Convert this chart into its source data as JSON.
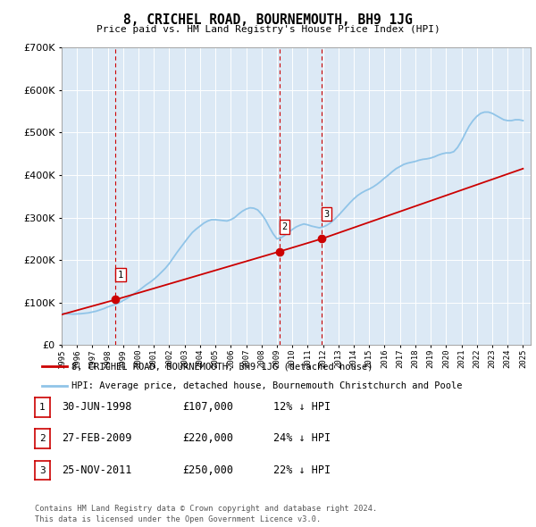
{
  "title": "8, CRICHEL ROAD, BOURNEMOUTH, BH9 1JG",
  "subtitle": "Price paid vs. HM Land Registry's House Price Index (HPI)",
  "background_color": "#dce9f5",
  "plot_bg": "#dce9f5",
  "ylim": [
    0,
    700000
  ],
  "yticks": [
    0,
    100000,
    200000,
    300000,
    400000,
    500000,
    600000,
    700000
  ],
  "xlim_start": 1995.0,
  "xlim_end": 2025.5,
  "sales": [
    {
      "num": 1,
      "date": "30-JUN-1998",
      "year": 1998.5,
      "price": 107000,
      "label": "12% ↓ HPI"
    },
    {
      "num": 2,
      "date": "27-FEB-2009",
      "year": 2009.15,
      "price": 220000,
      "label": "24% ↓ HPI"
    },
    {
      "num": 3,
      "date": "25-NOV-2011",
      "year": 2011.9,
      "price": 250000,
      "label": "22% ↓ HPI"
    }
  ],
  "hpi_line_color": "#90c4e8",
  "price_line_color": "#cc0000",
  "sale_marker_color": "#cc0000",
  "vline_color": "#cc0000",
  "legend_label_price": "8, CRICHEL ROAD, BOURNEMOUTH, BH9 1JG (detached house)",
  "legend_label_hpi": "HPI: Average price, detached house, Bournemouth Christchurch and Poole",
  "footer1": "Contains HM Land Registry data © Crown copyright and database right 2024.",
  "footer2": "This data is licensed under the Open Government Licence v3.0.",
  "hpi_data_x": [
    1995,
    1995.25,
    1995.5,
    1995.75,
    1996,
    1996.25,
    1996.5,
    1996.75,
    1997,
    1997.25,
    1997.5,
    1997.75,
    1998,
    1998.25,
    1998.5,
    1998.75,
    1999,
    1999.25,
    1999.5,
    1999.75,
    2000,
    2000.25,
    2000.5,
    2000.75,
    2001,
    2001.25,
    2001.5,
    2001.75,
    2002,
    2002.25,
    2002.5,
    2002.75,
    2003,
    2003.25,
    2003.5,
    2003.75,
    2004,
    2004.25,
    2004.5,
    2004.75,
    2005,
    2005.25,
    2005.5,
    2005.75,
    2006,
    2006.25,
    2006.5,
    2006.75,
    2007,
    2007.25,
    2007.5,
    2007.75,
    2008,
    2008.25,
    2008.5,
    2008.75,
    2009,
    2009.25,
    2009.5,
    2009.75,
    2010,
    2010.25,
    2010.5,
    2010.75,
    2011,
    2011.25,
    2011.5,
    2011.75,
    2012,
    2012.25,
    2012.5,
    2012.75,
    2013,
    2013.25,
    2013.5,
    2013.75,
    2014,
    2014.25,
    2014.5,
    2014.75,
    2015,
    2015.25,
    2015.5,
    2015.75,
    2016,
    2016.25,
    2016.5,
    2016.75,
    2017,
    2017.25,
    2017.5,
    2017.75,
    2018,
    2018.25,
    2018.5,
    2018.75,
    2019,
    2019.25,
    2019.5,
    2019.75,
    2020,
    2020.25,
    2020.5,
    2020.75,
    2021,
    2021.25,
    2021.5,
    2021.75,
    2022,
    2022.25,
    2022.5,
    2022.75,
    2023,
    2023.25,
    2023.5,
    2023.75,
    2024,
    2024.25,
    2024.5,
    2024.75,
    2025
  ],
  "hpi_data_y": [
    75000,
    74000,
    73500,
    73000,
    73500,
    74000,
    75000,
    76000,
    78000,
    80000,
    83000,
    86000,
    90000,
    93000,
    96000,
    100000,
    105000,
    110000,
    116000,
    122000,
    128000,
    135000,
    142000,
    148000,
    155000,
    163000,
    172000,
    181000,
    192000,
    205000,
    218000,
    230000,
    242000,
    254000,
    265000,
    273000,
    280000,
    287000,
    292000,
    295000,
    295000,
    294000,
    293000,
    292000,
    295000,
    300000,
    308000,
    315000,
    320000,
    323000,
    322000,
    318000,
    308000,
    295000,
    278000,
    262000,
    250000,
    252000,
    258000,
    265000,
    272000,
    278000,
    282000,
    285000,
    283000,
    280000,
    278000,
    276000,
    278000,
    282000,
    288000,
    296000,
    305000,
    315000,
    325000,
    335000,
    344000,
    352000,
    358000,
    363000,
    367000,
    372000,
    378000,
    385000,
    393000,
    400000,
    408000,
    415000,
    420000,
    425000,
    428000,
    430000,
    432000,
    435000,
    437000,
    438000,
    440000,
    443000,
    447000,
    450000,
    452000,
    452000,
    455000,
    465000,
    480000,
    498000,
    515000,
    528000,
    538000,
    545000,
    548000,
    548000,
    545000,
    540000,
    535000,
    530000,
    528000,
    528000,
    530000,
    530000,
    528000
  ],
  "price_data_x": [
    1995.0,
    1998.5,
    2009.15,
    2011.9,
    2025.0
  ],
  "price_data_y": [
    72000,
    107000,
    220000,
    250000,
    415000
  ]
}
